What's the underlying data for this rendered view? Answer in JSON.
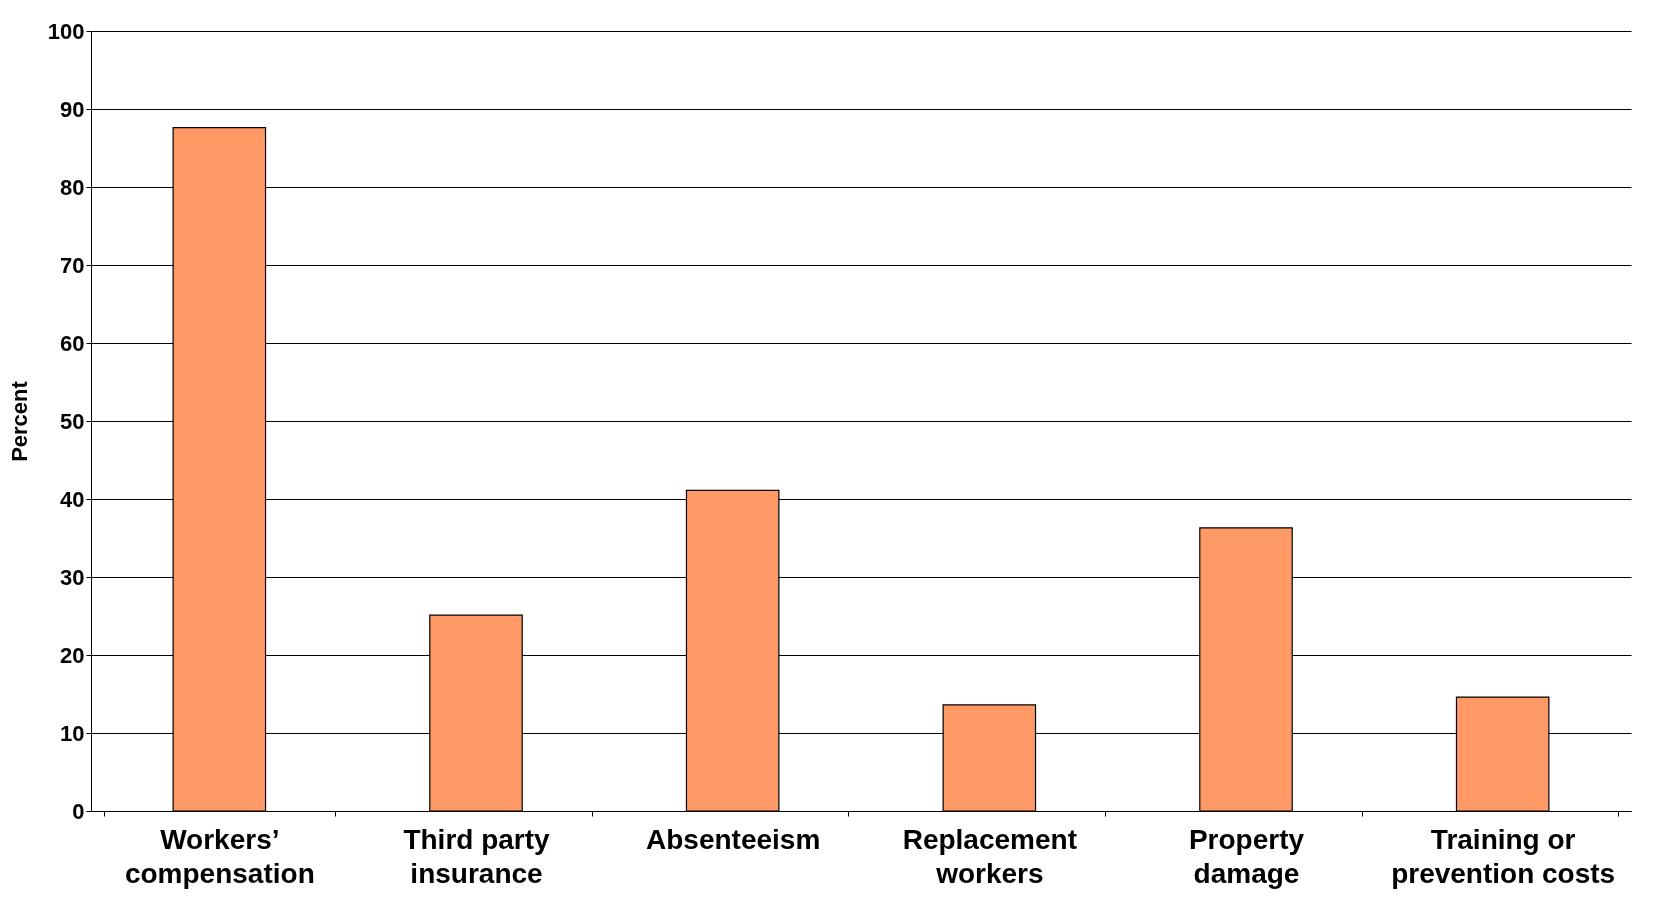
{
  "chart_data": {
    "type": "bar",
    "ylabel": "Percent",
    "categories": [
      "Workers’ compensation",
      "Third party insurance",
      "Absenteeism",
      "Replacement workers",
      "Property damage",
      "Training or prevention costs"
    ],
    "values": [
      87.6,
      25.1,
      41.1,
      13.6,
      36.3,
      14.6
    ],
    "color": "#ff9966",
    "ylim": [
      0,
      100
    ],
    "yticks": [
      0,
      10,
      20,
      30,
      40,
      50,
      60,
      70,
      80,
      90,
      100
    ],
    "grid": "y"
  }
}
